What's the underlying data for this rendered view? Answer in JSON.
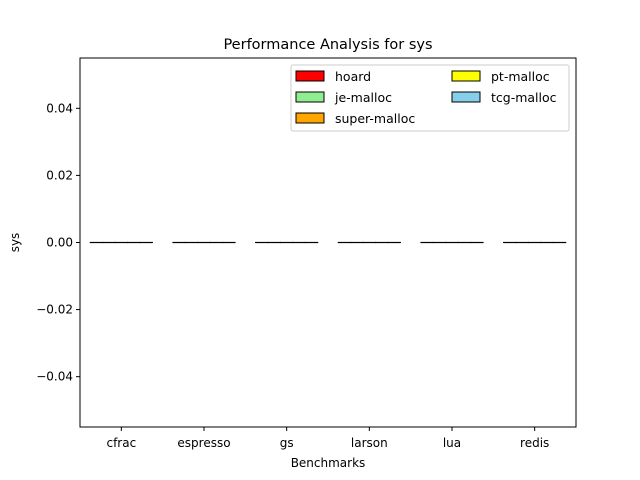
{
  "chart_data": {
    "type": "bar",
    "title": "Performance Analysis for sys",
    "xlabel": "Benchmarks",
    "ylabel": "sys",
    "categories": [
      "cfrac",
      "espresso",
      "gs",
      "larson",
      "lua",
      "redis"
    ],
    "ylim": [
      -0.055,
      0.055
    ],
    "yticks": [
      -0.04,
      -0.02,
      0.0,
      0.02,
      0.04
    ],
    "ytick_labels": [
      "−0.04",
      "−0.02",
      "0.00",
      "0.02",
      "0.04"
    ],
    "legend_position": "top-right",
    "legend_columns": 2,
    "grid": false,
    "series": [
      {
        "name": "hoard",
        "color": "#ff0000",
        "values": [
          0,
          0,
          0,
          0,
          0,
          0
        ]
      },
      {
        "name": "je-malloc",
        "color": "#90ee90",
        "values": [
          0,
          0,
          0,
          0,
          0,
          0
        ]
      },
      {
        "name": "super-malloc",
        "color": "#ffa500",
        "values": [
          0,
          0,
          0,
          0,
          0,
          0
        ]
      },
      {
        "name": "pt-malloc",
        "color": "#ffff00",
        "values": [
          0,
          0,
          0,
          0,
          0,
          0
        ]
      },
      {
        "name": "tcg-malloc",
        "color": "#87ceeb",
        "values": [
          0,
          0,
          0,
          0,
          0,
          0
        ]
      }
    ]
  }
}
